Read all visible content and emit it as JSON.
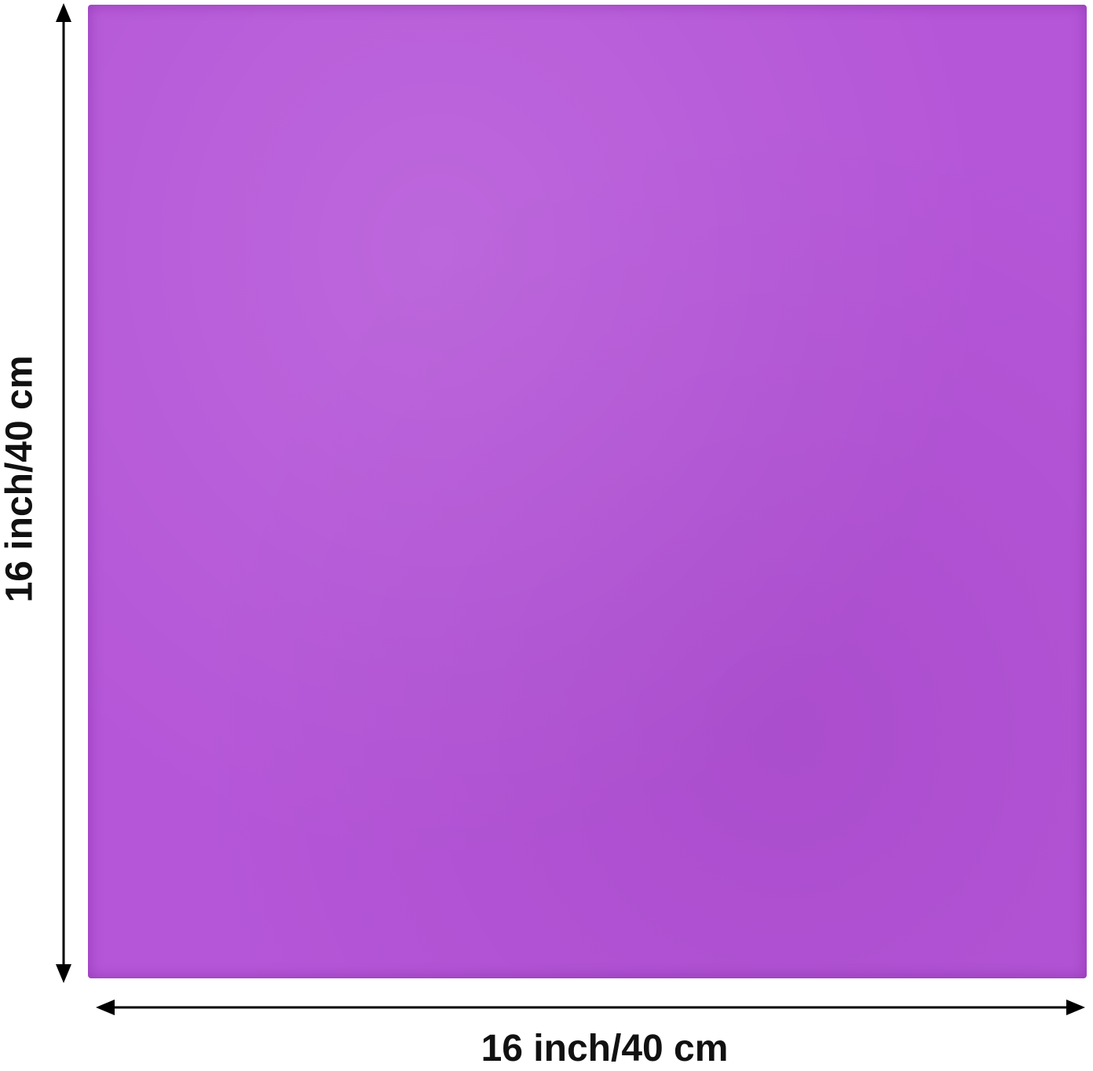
{
  "product": {
    "color": "#b556d8"
  },
  "dimensions": {
    "width_label": "16 inch/40 cm",
    "height_label": "16 inch/40 cm"
  }
}
